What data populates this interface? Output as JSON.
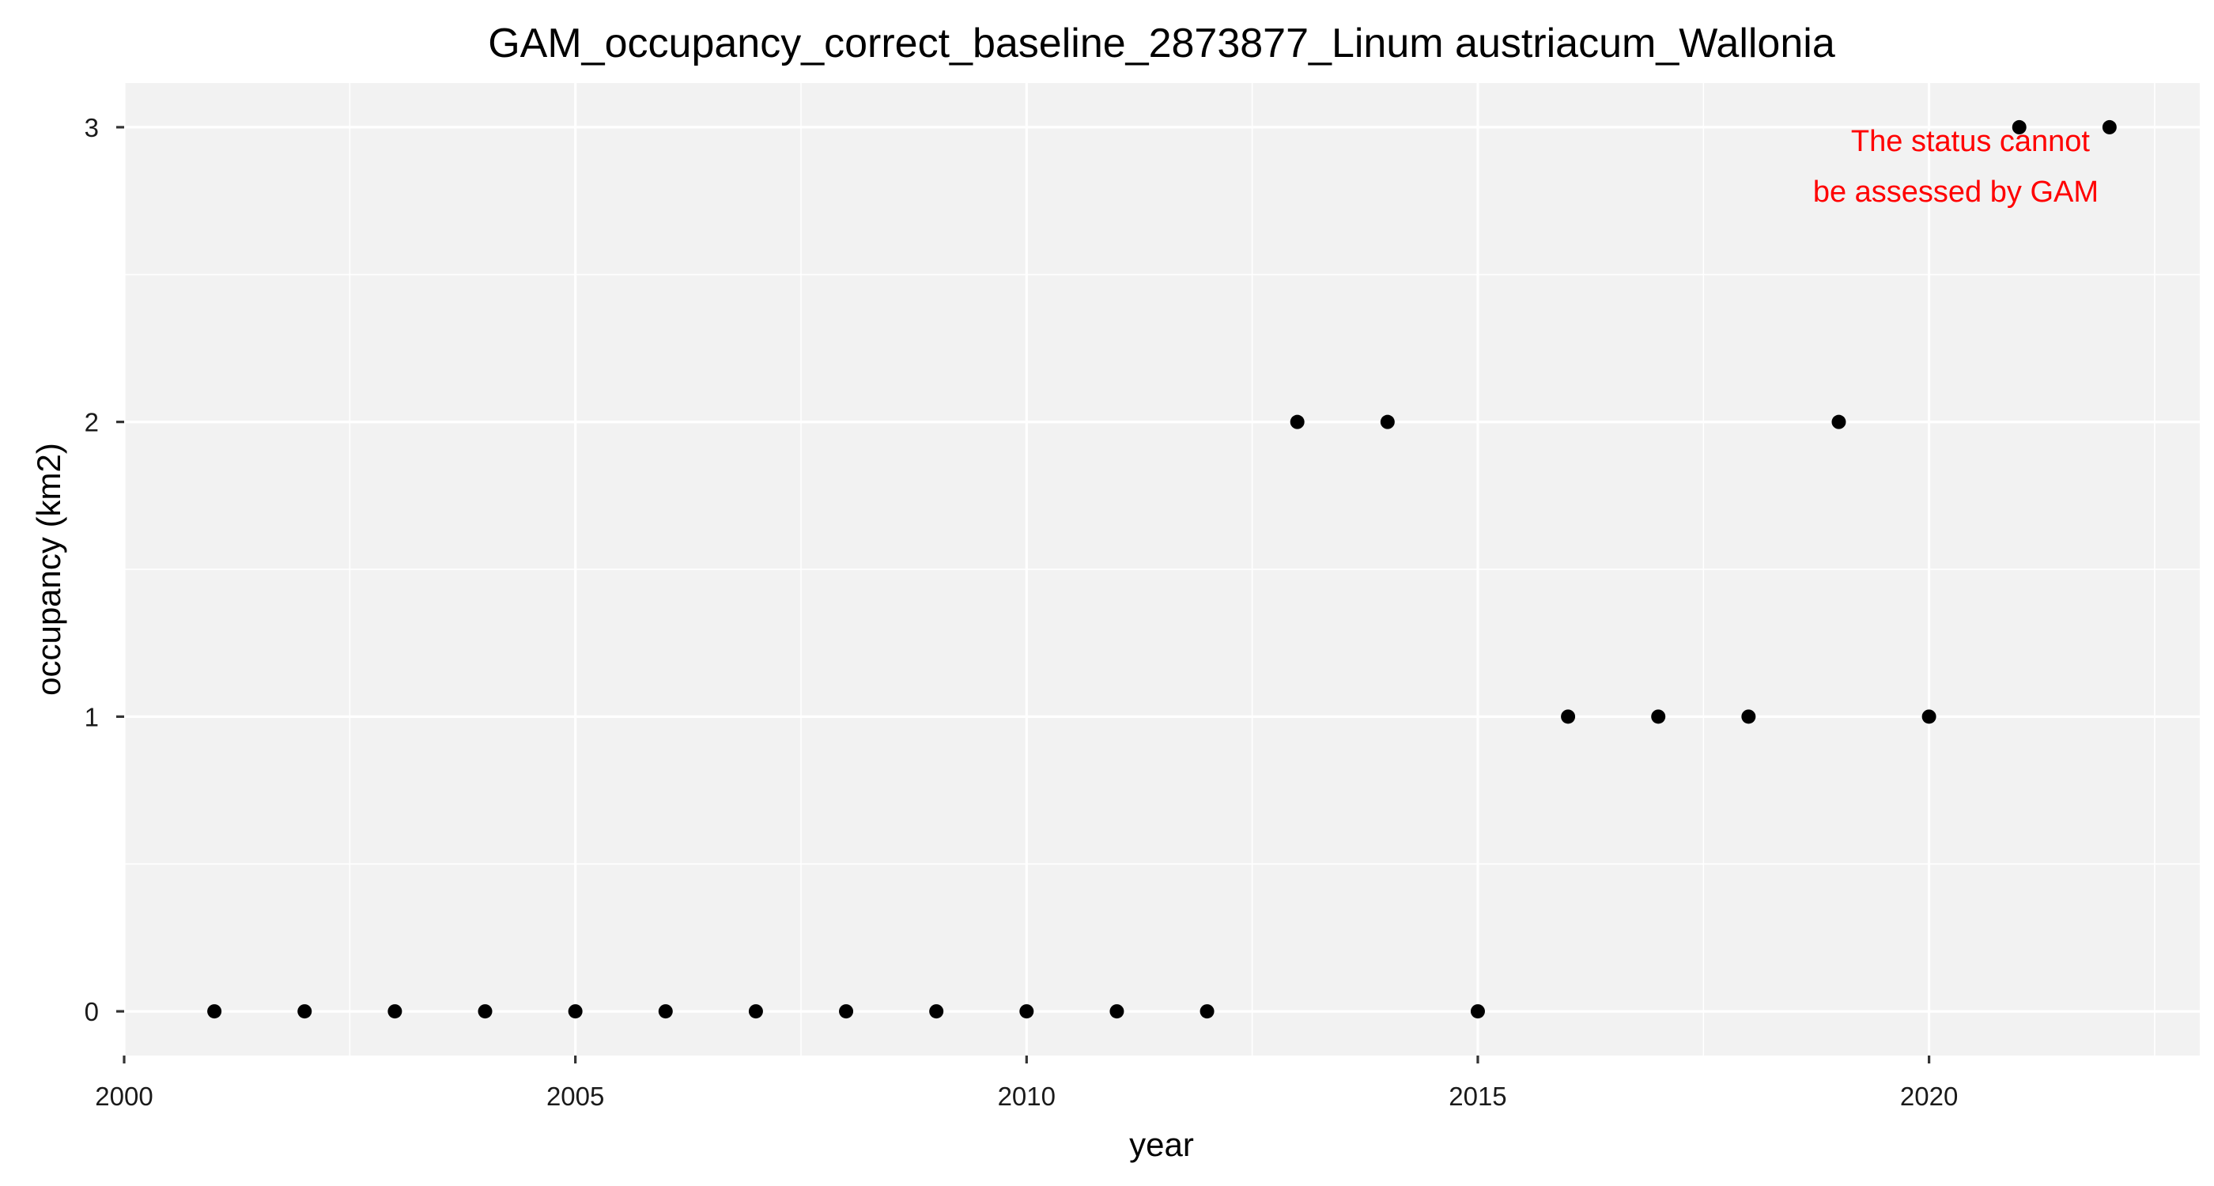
{
  "chart_data": {
    "type": "scatter",
    "title": "GAM_occupancy_correct_baseline_2873877_Linum austriacum_Wallonia",
    "xlabel": "year",
    "ylabel": "occupancy (km2)",
    "xlim": [
      2000,
      2023
    ],
    "ylim": [
      -0.15,
      3.15
    ],
    "x_ticks": [
      2000,
      2005,
      2010,
      2015,
      2020
    ],
    "x_tick_labels": [
      "2000",
      "2005",
      "2010",
      "2015",
      "2020"
    ],
    "y_ticks": [
      0,
      1,
      2,
      3
    ],
    "y_tick_labels": [
      "0",
      "1",
      "2",
      "3"
    ],
    "grid": true,
    "series": [
      {
        "name": "occupancy",
        "x": [
          2001,
          2002,
          2003,
          2004,
          2005,
          2006,
          2007,
          2008,
          2009,
          2010,
          2011,
          2012,
          2013,
          2014,
          2015,
          2016,
          2017,
          2018,
          2019,
          2020,
          2021,
          2022
        ],
        "y": [
          0,
          0,
          0,
          0,
          0,
          0,
          0,
          0,
          0,
          0,
          0,
          0,
          2,
          2,
          0,
          1,
          1,
          1,
          2,
          1,
          3,
          3
        ]
      }
    ],
    "annotations": [
      {
        "lines": [
          "The status cannot",
          "be assessed by GAM"
        ],
        "color": "#ff0000",
        "position": "top-right"
      }
    ],
    "colors": {
      "panel_background": "#f2f2f2",
      "grid": "#ffffff",
      "point": "#000000"
    }
  }
}
